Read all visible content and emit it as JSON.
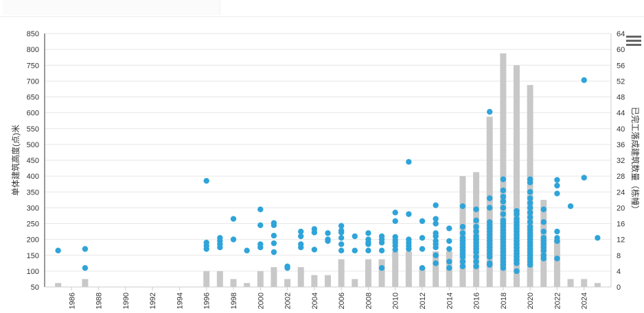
{
  "header": {
    "title": ""
  },
  "toolbar": {
    "menu_icon": "hamburger-menu-icon"
  },
  "chart_data": {
    "type": "bar",
    "title": "",
    "y_left_label": "单体建筑高度(点)米",
    "y_right_label": "已完工落成建筑数量（栋幢）",
    "y_left_range": [
      50,
      850
    ],
    "y_left_ticks": [
      50,
      100,
      150,
      200,
      250,
      300,
      350,
      400,
      450,
      500,
      550,
      600,
      650,
      700,
      750,
      800,
      850
    ],
    "y_right_range": [
      0,
      64
    ],
    "y_right_ticks": [
      0,
      4,
      8,
      12,
      16,
      20,
      24,
      28,
      32,
      36,
      40,
      44,
      48,
      52,
      56,
      60,
      64
    ],
    "x_range": [
      1984,
      2026
    ],
    "x_ticks": [
      1986,
      1988,
      1990,
      1992,
      1994,
      1996,
      1998,
      2000,
      2002,
      2004,
      2006,
      2008,
      2010,
      2012,
      2014,
      2016,
      2018,
      2020,
      2022,
      2024
    ],
    "grid": true,
    "colors": {
      "bars": "#c8c8c8",
      "points": "#2fa4d9"
    },
    "series": [
      {
        "type": "bar",
        "axis": "right",
        "x": [
          1985,
          1987,
          1996,
          1997,
          1998,
          1999,
          2000,
          2001,
          2002,
          2003,
          2004,
          2005,
          2006,
          2007,
          2008,
          2009,
          2010,
          2011,
          2012,
          2013,
          2014,
          2015,
          2016,
          2017,
          2018,
          2019,
          2020,
          2021,
          2022,
          2023,
          2024,
          2025
        ],
        "values": [
          1,
          2,
          4,
          4,
          2,
          1,
          4,
          5,
          2,
          5,
          3,
          3,
          7,
          2,
          7,
          7,
          9,
          9,
          5,
          9,
          9,
          28,
          29,
          43,
          59,
          56,
          51,
          22,
          12,
          2,
          2,
          1
        ]
      },
      {
        "type": "scatter",
        "axis": "left",
        "points": [
          [
            1985,
            165
          ],
          [
            1987,
            170
          ],
          [
            1987,
            110
          ],
          [
            1996,
            385
          ],
          [
            1996,
            190
          ],
          [
            1996,
            180
          ],
          [
            1996,
            170
          ],
          [
            1997,
            205
          ],
          [
            1997,
            195
          ],
          [
            1997,
            185
          ],
          [
            1997,
            175
          ],
          [
            1998,
            265
          ],
          [
            1998,
            200
          ],
          [
            1999,
            165
          ],
          [
            2000,
            295
          ],
          [
            2000,
            245
          ],
          [
            2000,
            185
          ],
          [
            2000,
            175
          ],
          [
            2001,
            252
          ],
          [
            2001,
            245
          ],
          [
            2001,
            212
          ],
          [
            2001,
            188
          ],
          [
            2001,
            160
          ],
          [
            2002,
            115
          ],
          [
            2002,
            110
          ],
          [
            2003,
            225
          ],
          [
            2003,
            210
          ],
          [
            2003,
            185
          ],
          [
            2003,
            175
          ],
          [
            2004,
            233
          ],
          [
            2004,
            222
          ],
          [
            2004,
            168
          ],
          [
            2005,
            220
          ],
          [
            2005,
            200
          ],
          [
            2005,
            195
          ],
          [
            2006,
            243
          ],
          [
            2006,
            228
          ],
          [
            2006,
            222
          ],
          [
            2006,
            205
          ],
          [
            2006,
            185
          ],
          [
            2006,
            165
          ],
          [
            2007,
            210
          ],
          [
            2007,
            165
          ],
          [
            2008,
            220
          ],
          [
            2008,
            200
          ],
          [
            2008,
            190
          ],
          [
            2008,
            185
          ],
          [
            2008,
            165
          ],
          [
            2009,
            210
          ],
          [
            2009,
            200
          ],
          [
            2009,
            190
          ],
          [
            2009,
            165
          ],
          [
            2009,
            110
          ],
          [
            2010,
            285
          ],
          [
            2010,
            258
          ],
          [
            2010,
            208
          ],
          [
            2010,
            198
          ],
          [
            2010,
            190
          ],
          [
            2010,
            180
          ],
          [
            2010,
            168
          ],
          [
            2011,
            445
          ],
          [
            2011,
            280
          ],
          [
            2011,
            200
          ],
          [
            2011,
            190
          ],
          [
            2011,
            180
          ],
          [
            2011,
            170
          ],
          [
            2012,
            258
          ],
          [
            2012,
            205
          ],
          [
            2012,
            170
          ],
          [
            2012,
            110
          ],
          [
            2013,
            308
          ],
          [
            2013,
            265
          ],
          [
            2013,
            250
          ],
          [
            2013,
            220
          ],
          [
            2013,
            210
          ],
          [
            2013,
            195
          ],
          [
            2013,
            185
          ],
          [
            2013,
            175
          ],
          [
            2013,
            150
          ],
          [
            2013,
            125
          ],
          [
            2014,
            235
          ],
          [
            2014,
            195
          ],
          [
            2014,
            170
          ],
          [
            2014,
            130
          ],
          [
            2014,
            110
          ],
          [
            2015,
            305
          ],
          [
            2015,
            240
          ],
          [
            2015,
            220
          ],
          [
            2015,
            205
          ],
          [
            2015,
            195
          ],
          [
            2015,
            185
          ],
          [
            2015,
            175
          ],
          [
            2015,
            165
          ],
          [
            2015,
            155
          ],
          [
            2015,
            145
          ],
          [
            2015,
            130
          ],
          [
            2015,
            115
          ],
          [
            2016,
            295
          ],
          [
            2016,
            260
          ],
          [
            2016,
            240
          ],
          [
            2016,
            225
          ],
          [
            2016,
            210
          ],
          [
            2016,
            200
          ],
          [
            2016,
            190
          ],
          [
            2016,
            180
          ],
          [
            2016,
            170
          ],
          [
            2016,
            160
          ],
          [
            2016,
            145
          ],
          [
            2016,
            130
          ],
          [
            2016,
            115
          ],
          [
            2017,
            603
          ],
          [
            2017,
            330
          ],
          [
            2017,
            300
          ],
          [
            2017,
            255
          ],
          [
            2017,
            245
          ],
          [
            2017,
            235
          ],
          [
            2017,
            225
          ],
          [
            2017,
            215
          ],
          [
            2017,
            205
          ],
          [
            2017,
            195
          ],
          [
            2017,
            185
          ],
          [
            2017,
            175
          ],
          [
            2017,
            165
          ],
          [
            2017,
            155
          ],
          [
            2017,
            145
          ],
          [
            2017,
            125
          ],
          [
            2017,
            120
          ],
          [
            2018,
            390
          ],
          [
            2018,
            355
          ],
          [
            2018,
            335
          ],
          [
            2018,
            320
          ],
          [
            2018,
            300
          ],
          [
            2018,
            280
          ],
          [
            2018,
            260
          ],
          [
            2018,
            250
          ],
          [
            2018,
            240
          ],
          [
            2018,
            230
          ],
          [
            2018,
            220
          ],
          [
            2018,
            210
          ],
          [
            2018,
            200
          ],
          [
            2018,
            190
          ],
          [
            2018,
            180
          ],
          [
            2018,
            170
          ],
          [
            2018,
            160
          ],
          [
            2018,
            150
          ],
          [
            2018,
            140
          ],
          [
            2018,
            130
          ],
          [
            2018,
            120
          ],
          [
            2018,
            110
          ],
          [
            2019,
            290
          ],
          [
            2019,
            280
          ],
          [
            2019,
            265
          ],
          [
            2019,
            255
          ],
          [
            2019,
            245
          ],
          [
            2019,
            235
          ],
          [
            2019,
            225
          ],
          [
            2019,
            215
          ],
          [
            2019,
            205
          ],
          [
            2019,
            195
          ],
          [
            2019,
            185
          ],
          [
            2019,
            175
          ],
          [
            2019,
            165
          ],
          [
            2019,
            155
          ],
          [
            2019,
            145
          ],
          [
            2019,
            135
          ],
          [
            2019,
            125
          ],
          [
            2019,
            100
          ],
          [
            2020,
            390
          ],
          [
            2020,
            380
          ],
          [
            2020,
            350
          ],
          [
            2020,
            330
          ],
          [
            2020,
            315
          ],
          [
            2020,
            300
          ],
          [
            2020,
            285
          ],
          [
            2020,
            270
          ],
          [
            2020,
            255
          ],
          [
            2020,
            240
          ],
          [
            2020,
            230
          ],
          [
            2020,
            220
          ],
          [
            2020,
            210
          ],
          [
            2020,
            200
          ],
          [
            2020,
            190
          ],
          [
            2020,
            180
          ],
          [
            2020,
            170
          ],
          [
            2020,
            160
          ],
          [
            2020,
            150
          ],
          [
            2020,
            140
          ],
          [
            2020,
            130
          ],
          [
            2020,
            120
          ],
          [
            2021,
            295
          ],
          [
            2021,
            255
          ],
          [
            2021,
            225
          ],
          [
            2021,
            205
          ],
          [
            2021,
            195
          ],
          [
            2021,
            185
          ],
          [
            2021,
            175
          ],
          [
            2021,
            165
          ],
          [
            2021,
            150
          ],
          [
            2021,
            140
          ],
          [
            2022,
            388
          ],
          [
            2022,
            370
          ],
          [
            2022,
            345
          ],
          [
            2022,
            225
          ],
          [
            2022,
            205
          ],
          [
            2022,
            195
          ],
          [
            2022,
            140
          ],
          [
            2023,
            305
          ],
          [
            2024,
            703
          ],
          [
            2024,
            395
          ],
          [
            2025,
            205
          ]
        ]
      }
    ]
  }
}
